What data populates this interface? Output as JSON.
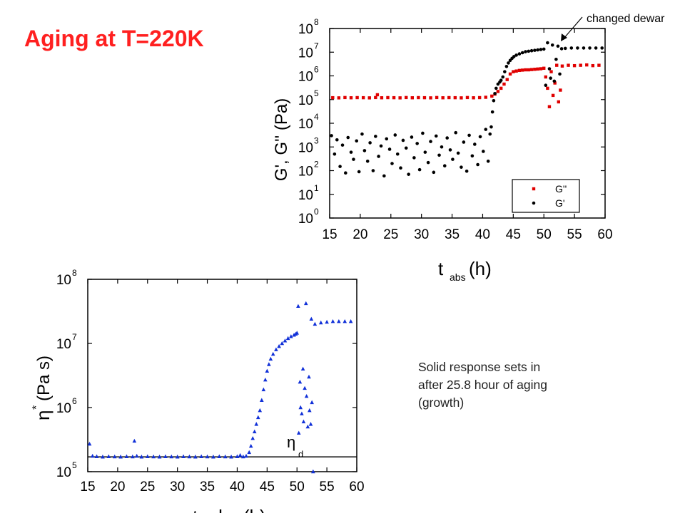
{
  "slide": {
    "title": "Aging at T=220K",
    "caption_lines": [
      "Solid response sets in",
      "after 25.8 hour of aging",
      "(growth)"
    ]
  },
  "chart_data": [
    {
      "type": "scatter",
      "ylabel": "G', G'' (Pa)",
      "xlabel": "t_abs (h)",
      "xlabel_main": "t",
      "xlabel_sub": "abs",
      "xlabel_unit": "(h)",
      "xlim": [
        15,
        60
      ],
      "ylim": [
        1,
        100000000
      ],
      "y_scale": "log",
      "x_ticks": [
        15,
        20,
        25,
        30,
        35,
        40,
        45,
        50,
        55,
        60
      ],
      "y_ticks": [
        {
          "value": 1,
          "base": "10",
          "exp": "0"
        },
        {
          "value": 10,
          "base": "10",
          "exp": "1"
        },
        {
          "value": 100,
          "base": "10",
          "exp": "2"
        },
        {
          "value": 1000,
          "base": "10",
          "exp": "3"
        },
        {
          "value": 10000,
          "base": "10",
          "exp": "4"
        },
        {
          "value": 100000,
          "base": "10",
          "exp": "5"
        },
        {
          "value": 1000000,
          "base": "10",
          "exp": "6"
        },
        {
          "value": 10000000,
          "base": "10",
          "exp": "7"
        },
        {
          "value": 100000000,
          "base": "10",
          "exp": "8"
        }
      ],
      "legend_position": "bottom-right",
      "annotation": {
        "text": "changed dewar",
        "x": 52.5,
        "y": 15000000
      },
      "series": [
        {
          "name": "G''",
          "color": "#e00000",
          "marker": "square",
          "points": [
            [
              15.5,
              120000
            ],
            [
              16.5,
              118000
            ],
            [
              17.5,
              122000
            ],
            [
              18.5,
              119000
            ],
            [
              19.5,
              121000
            ],
            [
              20.5,
              120000
            ],
            [
              21.5,
              118000
            ],
            [
              22.5,
              122000
            ],
            [
              22.8,
              160000
            ],
            [
              23.5,
              119000
            ],
            [
              24.5,
              121000
            ],
            [
              25.5,
              120000
            ],
            [
              26.5,
              118000
            ],
            [
              27.5,
              122000
            ],
            [
              28.5,
              119000
            ],
            [
              29.5,
              121000
            ],
            [
              30.5,
              120000
            ],
            [
              31.5,
              118000
            ],
            [
              32.5,
              122000
            ],
            [
              33.5,
              119000
            ],
            [
              34.5,
              121000
            ],
            [
              35.5,
              120000
            ],
            [
              36.5,
              118000
            ],
            [
              37.5,
              122000
            ],
            [
              38.5,
              119000
            ],
            [
              39.5,
              121000
            ],
            [
              40.5,
              125000
            ],
            [
              41.5,
              140000
            ],
            [
              42.0,
              170000
            ],
            [
              42.5,
              220000
            ],
            [
              43.0,
              300000
            ],
            [
              43.5,
              450000
            ],
            [
              44.0,
              700000
            ],
            [
              44.5,
              1200000
            ],
            [
              45.0,
              1500000
            ],
            [
              45.5,
              1600000
            ],
            [
              46.0,
              1700000
            ],
            [
              46.5,
              1750000
            ],
            [
              47.0,
              1800000
            ],
            [
              47.5,
              1800000
            ],
            [
              48.0,
              1850000
            ],
            [
              48.5,
              1900000
            ],
            [
              49.0,
              1950000
            ],
            [
              49.5,
              2000000
            ],
            [
              50.0,
              2100000
            ],
            [
              50.3,
              900000
            ],
            [
              50.6,
              300000
            ],
            [
              50.9,
              50000
            ],
            [
              51.2,
              1500000
            ],
            [
              51.5,
              150000
            ],
            [
              51.8,
              500000
            ],
            [
              52.1,
              2800000
            ],
            [
              52.4,
              80000
            ],
            [
              52.7,
              250000
            ],
            [
              53.0,
              2600000
            ],
            [
              54.0,
              2800000
            ],
            [
              55.0,
              2700000
            ],
            [
              56.0,
              2800000
            ],
            [
              57.0,
              2900000
            ],
            [
              58.0,
              2700000
            ],
            [
              59.0,
              2800000
            ]
          ]
        },
        {
          "name": "G'",
          "color": "#000000",
          "marker": "circle",
          "points": [
            [
              15.3,
              3000
            ],
            [
              15.8,
              500
            ],
            [
              16.2,
              2000
            ],
            [
              16.7,
              150
            ],
            [
              17.1,
              1200
            ],
            [
              17.6,
              80
            ],
            [
              18.0,
              2500
            ],
            [
              18.5,
              600
            ],
            [
              18.9,
              300
            ],
            [
              19.4,
              1800
            ],
            [
              19.8,
              90
            ],
            [
              20.3,
              3500
            ],
            [
              20.7,
              700
            ],
            [
              21.2,
              250
            ],
            [
              21.6,
              1500
            ],
            [
              22.1,
              100
            ],
            [
              22.5,
              2800
            ],
            [
              23.0,
              400
            ],
            [
              23.4,
              1100
            ],
            [
              23.9,
              60
            ],
            [
              24.3,
              2200
            ],
            [
              24.8,
              800
            ],
            [
              25.2,
              200
            ],
            [
              25.7,
              3200
            ],
            [
              26.1,
              500
            ],
            [
              26.6,
              130
            ],
            [
              27.0,
              1900
            ],
            [
              27.5,
              900
            ],
            [
              27.9,
              70
            ],
            [
              28.4,
              2600
            ],
            [
              28.8,
              350
            ],
            [
              29.3,
              1400
            ],
            [
              29.7,
              110
            ],
            [
              30.2,
              3800
            ],
            [
              30.6,
              600
            ],
            [
              31.1,
              220
            ],
            [
              31.5,
              1700
            ],
            [
              32.0,
              85
            ],
            [
              32.4,
              2900
            ],
            [
              32.9,
              450
            ],
            [
              33.3,
              1000
            ],
            [
              33.8,
              160
            ],
            [
              34.2,
              2400
            ],
            [
              34.7,
              750
            ],
            [
              35.1,
              300
            ],
            [
              35.6,
              4000
            ],
            [
              36.0,
              550
            ],
            [
              36.5,
              140
            ],
            [
              36.9,
              1600
            ],
            [
              37.4,
              95
            ],
            [
              37.8,
              3100
            ],
            [
              38.3,
              420
            ],
            [
              38.7,
              1300
            ],
            [
              39.2,
              180
            ],
            [
              39.6,
              2700
            ],
            [
              40.1,
              650
            ],
            [
              40.5,
              5500
            ],
            [
              40.9,
              250
            ],
            [
              41.2,
              3500
            ],
            [
              41.4,
              7000
            ],
            [
              41.6,
              30000
            ],
            [
              41.8,
              90000
            ],
            [
              42.0,
              180000
            ],
            [
              42.2,
              300000
            ],
            [
              42.5,
              450000
            ],
            [
              42.8,
              550000
            ],
            [
              43.0,
              650000
            ],
            [
              43.3,
              900000
            ],
            [
              43.6,
              1500000
            ],
            [
              43.9,
              2500000
            ],
            [
              44.2,
              3500000
            ],
            [
              44.5,
              4500000
            ],
            [
              44.8,
              5500000
            ],
            [
              45.1,
              6500000
            ],
            [
              45.5,
              7500000
            ],
            [
              46.0,
              8500000
            ],
            [
              46.5,
              9500000
            ],
            [
              47.0,
              10500000
            ],
            [
              47.5,
              11000000
            ],
            [
              48.0,
              11500000
            ],
            [
              48.5,
              12000000
            ],
            [
              49.0,
              12500000
            ],
            [
              49.5,
              13000000
            ],
            [
              50.0,
              13500000
            ],
            [
              50.3,
              400000
            ],
            [
              50.6,
              25000000
            ],
            [
              50.9,
              2000000
            ],
            [
              51.1,
              800000
            ],
            [
              51.4,
              20000000
            ],
            [
              51.7,
              600000
            ],
            [
              52.0,
              5000000
            ],
            [
              52.3,
              18000000
            ],
            [
              52.6,
              1200000
            ],
            [
              52.9,
              14000000
            ],
            [
              53.5,
              14500000
            ],
            [
              54.5,
              15000000
            ],
            [
              55.5,
              15000000
            ],
            [
              56.5,
              15000000
            ],
            [
              57.5,
              15000000
            ],
            [
              58.5,
              15000000
            ],
            [
              59.5,
              15000000
            ]
          ]
        }
      ]
    },
    {
      "type": "scatter",
      "ylabel": "η* (Pa s)",
      "ylabel_greek": "η",
      "ylabel_sup": "*",
      "ylabel_unit": "(Pa s)",
      "xlabel": "t_abs (h)",
      "xlim": [
        15,
        60
      ],
      "ylim": [
        100000,
        100000000
      ],
      "y_scale": "log",
      "x_ticks": [
        15,
        20,
        25,
        30,
        35,
        40,
        45,
        50,
        55,
        60
      ],
      "y_ticks": [
        {
          "value": 100000,
          "base": "10",
          "exp": "5"
        },
        {
          "value": 1000000,
          "base": "10",
          "exp": "6"
        },
        {
          "value": 10000000,
          "base": "10",
          "exp": "7"
        },
        {
          "value": 100000000,
          "base": "10",
          "exp": "8"
        }
      ],
      "reference_line": {
        "label_greek": "η",
        "label_sub": "d",
        "y": 170000,
        "color": "#000000"
      },
      "series": [
        {
          "name": "η*",
          "color": "#1030d8",
          "marker": "triangle",
          "points": [
            [
              15.3,
              270000
            ],
            [
              15.8,
              175000
            ],
            [
              16.5,
              172000
            ],
            [
              17.5,
              170000
            ],
            [
              18.5,
              172000
            ],
            [
              19.5,
              171000
            ],
            [
              20.5,
              170000
            ],
            [
              21.5,
              172000
            ],
            [
              22.5,
              171000
            ],
            [
              22.8,
              300000
            ],
            [
              23.2,
              175000
            ],
            [
              24.0,
              170000
            ],
            [
              25.0,
              172000
            ],
            [
              26.0,
              171000
            ],
            [
              27.0,
              170000
            ],
            [
              28.0,
              172000
            ],
            [
              29.0,
              171000
            ],
            [
              30.0,
              170000
            ],
            [
              31.0,
              172000
            ],
            [
              32.0,
              171000
            ],
            [
              33.0,
              170000
            ],
            [
              34.0,
              172000
            ],
            [
              35.0,
              171000
            ],
            [
              36.0,
              170000
            ],
            [
              37.0,
              172000
            ],
            [
              38.0,
              171000
            ],
            [
              39.0,
              170000
            ],
            [
              40.0,
              172000
            ],
            [
              40.5,
              180000
            ],
            [
              41.0,
              171000
            ],
            [
              41.5,
              175000
            ],
            [
              42.0,
              200000
            ],
            [
              42.3,
              250000
            ],
            [
              42.6,
              330000
            ],
            [
              42.9,
              420000
            ],
            [
              43.2,
              550000
            ],
            [
              43.5,
              700000
            ],
            [
              43.8,
              900000
            ],
            [
              44.1,
              1300000
            ],
            [
              44.4,
              1900000
            ],
            [
              44.7,
              2700000
            ],
            [
              45.0,
              3700000
            ],
            [
              45.3,
              4700000
            ],
            [
              45.6,
              5700000
            ],
            [
              46.0,
              6800000
            ],
            [
              46.5,
              8000000
            ],
            [
              47.0,
              9000000
            ],
            [
              47.5,
              10000000
            ],
            [
              48.0,
              11000000
            ],
            [
              48.5,
              12000000
            ],
            [
              49.0,
              12800000
            ],
            [
              49.5,
              13500000
            ],
            [
              49.8,
              14000000
            ],
            [
              50.0,
              14500000
            ],
            [
              50.2,
              38000000
            ],
            [
              50.3,
              400000
            ],
            [
              50.5,
              2500000
            ],
            [
              50.6,
              1000000
            ],
            [
              50.8,
              800000
            ],
            [
              51.0,
              4000000
            ],
            [
              51.1,
              600000
            ],
            [
              51.3,
              2000000
            ],
            [
              51.5,
              42000000
            ],
            [
              51.6,
              1500000
            ],
            [
              51.8,
              500000
            ],
            [
              52.0,
              3000000
            ],
            [
              52.1,
              900000
            ],
            [
              52.3,
              550000
            ],
            [
              52.4,
              24000000
            ],
            [
              52.5,
              1200000
            ],
            [
              52.7,
              100000
            ],
            [
              53.0,
              20000000
            ],
            [
              54.0,
              21000000
            ],
            [
              55.0,
              21500000
            ],
            [
              56.0,
              22000000
            ],
            [
              57.0,
              22000000
            ],
            [
              58.0,
              22000000
            ],
            [
              59.0,
              22000000
            ]
          ]
        }
      ]
    }
  ]
}
